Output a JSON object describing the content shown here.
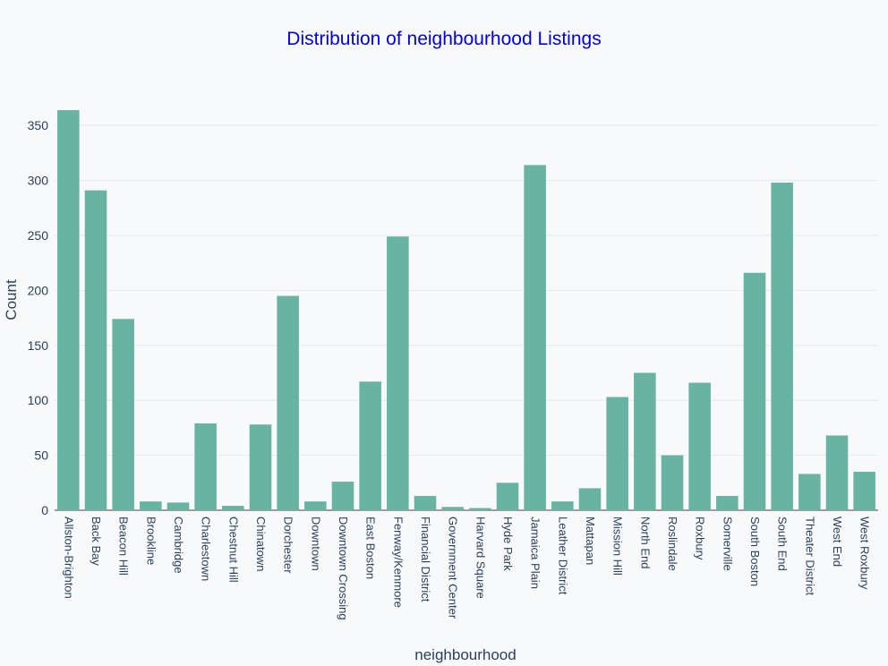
{
  "chart_data": {
    "type": "bar",
    "title": "Distribution of neighbourhood Listings",
    "xlabel": "neighbourhood",
    "ylabel": "Count",
    "ylim": [
      0,
      365
    ],
    "yticks": [
      0,
      50,
      100,
      150,
      200,
      250,
      300,
      350
    ],
    "grid": true,
    "bar_color": "#69b3a2",
    "title_color": "#0000ee",
    "categories": [
      "Allston-Brighton",
      "Back Bay",
      "Beacon Hill",
      "Brookline",
      "Cambridge",
      "Charlestown",
      "Chestnut Hill",
      "Chinatown",
      "Dorchester",
      "Downtown",
      "Downtown Crossing",
      "East Boston",
      "Fenway/Kenmore",
      "Financial District",
      "Government Center",
      "Harvard Square",
      "Hyde Park",
      "Jamaica Plain",
      "Leather District",
      "Mattapan",
      "Mission Hill",
      "North End",
      "Roslindale",
      "Roxbury",
      "Somerville",
      "South Boston",
      "South End",
      "Theater District",
      "West End",
      "West Roxbury"
    ],
    "values": [
      364,
      291,
      174,
      8,
      7,
      79,
      4,
      78,
      195,
      8,
      26,
      117,
      249,
      13,
      3,
      2,
      25,
      314,
      8,
      20,
      103,
      125,
      50,
      116,
      13,
      216,
      298,
      33,
      68,
      35
    ]
  }
}
